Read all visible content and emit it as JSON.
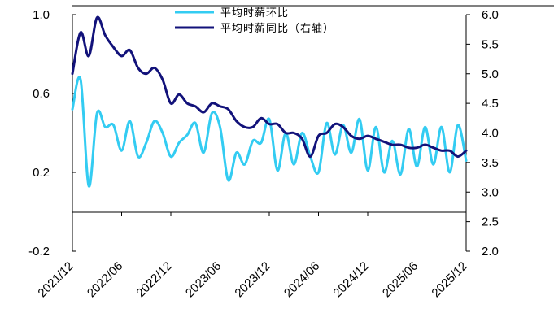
{
  "chart_data": {
    "type": "line",
    "title": "",
    "xlabel": "",
    "ylabel": "",
    "x_tick_labels": [
      "2021/12",
      "2022/06",
      "2022/12",
      "2023/06",
      "2023/12",
      "2024/06",
      "2024/12",
      "2025/06",
      "2025/12"
    ],
    "y_left": {
      "ticks": [
        -0.2,
        0.2,
        0.6,
        1.0
      ],
      "tick_labels": [
        "-0.2",
        "0.2",
        "0.6",
        "1.0"
      ],
      "range": [
        -0.2,
        1.0
      ]
    },
    "y_right": {
      "ticks": [
        2.0,
        2.5,
        3.0,
        3.5,
        4.0,
        4.5,
        5.0,
        5.5,
        6.0
      ],
      "tick_labels": [
        "2.0",
        "2.5",
        "3.0",
        "3.5",
        "4.0",
        "4.5",
        "5.0",
        "5.5",
        "6.0"
      ],
      "range": [
        2.0,
        6.0
      ]
    },
    "grid": false,
    "legend_position": "top",
    "series": [
      {
        "name": "平均时薪环比",
        "axis": "left",
        "color": "#33ccf2",
        "x": [
          "2021/12",
          "2022/01",
          "2022/02",
          "2022/03",
          "2022/04",
          "2022/05",
          "2022/06",
          "2022/07",
          "2022/08",
          "2022/09",
          "2022/10",
          "2022/11",
          "2022/12",
          "2023/01",
          "2023/02",
          "2023/03",
          "2023/04",
          "2023/05",
          "2023/06",
          "2023/07",
          "2023/08",
          "2023/09",
          "2023/10",
          "2023/11",
          "2023/12",
          "2024/01",
          "2024/02",
          "2024/03",
          "2024/04",
          "2024/05",
          "2024/06",
          "2024/07",
          "2024/08",
          "2024/09",
          "2024/10",
          "2024/11",
          "2024/12",
          "2025/01",
          "2025/02",
          "2025/03",
          "2025/04",
          "2025/05",
          "2025/06",
          "2025/07",
          "2025/08",
          "2025/09",
          "2025/10",
          "2025/11",
          "2025/12"
        ],
        "values": [
          0.52,
          0.67,
          0.13,
          0.5,
          0.43,
          0.44,
          0.31,
          0.46,
          0.28,
          0.35,
          0.46,
          0.4,
          0.28,
          0.35,
          0.39,
          0.45,
          0.3,
          0.5,
          0.43,
          0.16,
          0.3,
          0.24,
          0.36,
          0.35,
          0.47,
          0.21,
          0.4,
          0.24,
          0.4,
          0.28,
          0.2,
          0.45,
          0.29,
          0.44,
          0.3,
          0.47,
          0.21,
          0.43,
          0.2,
          0.36,
          0.19,
          0.42,
          0.23,
          0.43,
          0.24,
          0.43,
          0.2,
          0.44,
          0.26
        ]
      },
      {
        "name": "平均时薪同比（右轴）",
        "axis": "right",
        "color": "#12127a",
        "x": [
          "2021/12",
          "2022/01",
          "2022/02",
          "2022/03",
          "2022/04",
          "2022/05",
          "2022/06",
          "2022/07",
          "2022/08",
          "2022/09",
          "2022/10",
          "2022/11",
          "2022/12",
          "2023/01",
          "2023/02",
          "2023/03",
          "2023/04",
          "2023/05",
          "2023/06",
          "2023/07",
          "2023/08",
          "2023/09",
          "2023/10",
          "2023/11",
          "2023/12",
          "2024/01",
          "2024/02",
          "2024/03",
          "2024/04",
          "2024/05",
          "2024/06",
          "2024/07",
          "2024/08",
          "2024/09",
          "2024/10",
          "2024/11",
          "2024/12",
          "2025/01",
          "2025/02",
          "2025/03",
          "2025/04",
          "2025/05",
          "2025/06",
          "2025/07",
          "2025/08",
          "2025/09",
          "2025/10",
          "2025/11",
          "2025/12"
        ],
        "values": [
          5.0,
          5.7,
          5.3,
          5.95,
          5.65,
          5.45,
          5.3,
          5.4,
          5.1,
          5.0,
          5.1,
          4.9,
          4.5,
          4.65,
          4.5,
          4.45,
          4.35,
          4.5,
          4.45,
          4.4,
          4.2,
          4.1,
          4.1,
          4.25,
          4.15,
          4.15,
          4.0,
          4.0,
          3.9,
          3.6,
          3.95,
          4.0,
          4.15,
          4.1,
          3.95,
          3.9,
          3.95,
          3.9,
          3.85,
          3.8,
          3.8,
          3.75,
          3.75,
          3.8,
          3.75,
          3.7,
          3.7,
          3.6,
          3.7
        ]
      }
    ]
  }
}
